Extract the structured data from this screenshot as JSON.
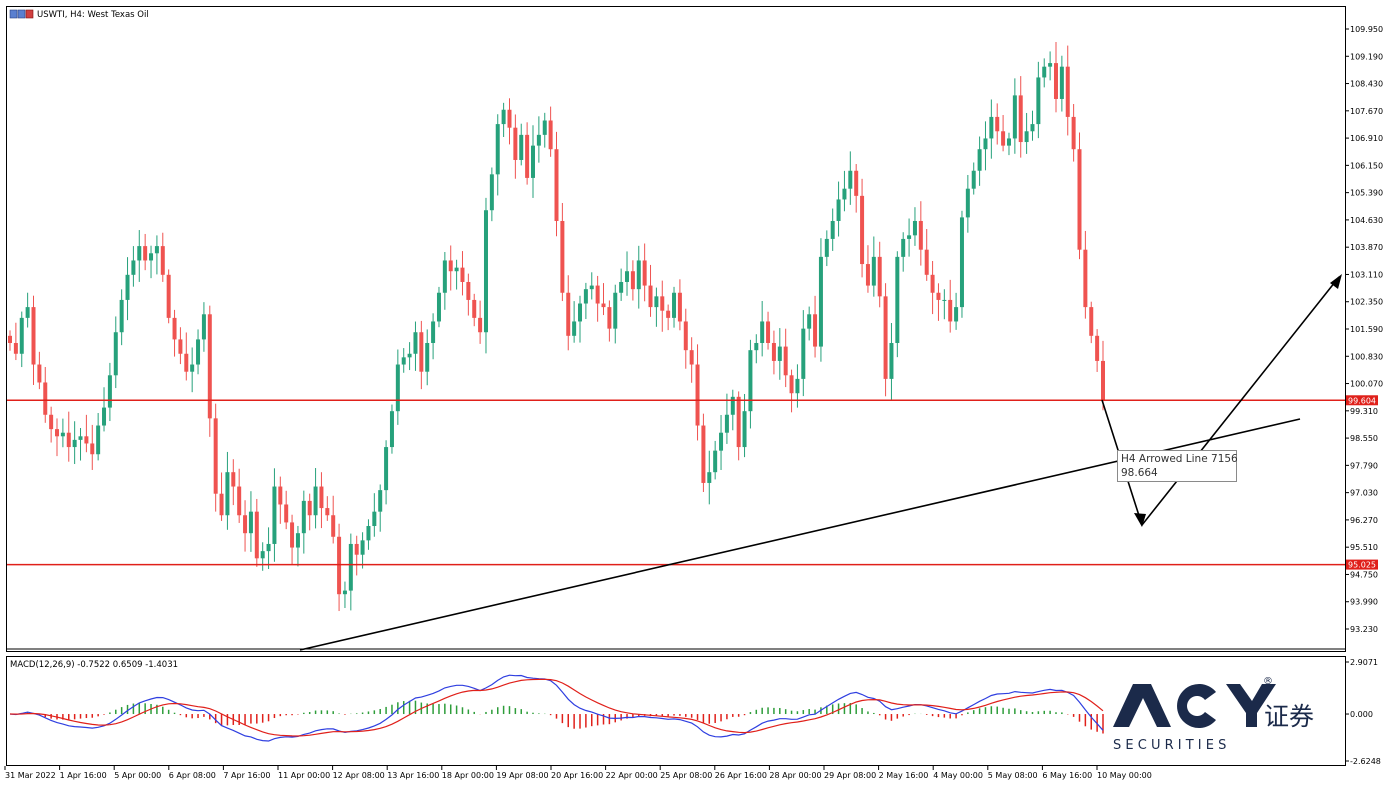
{
  "header": {
    "title": "USWTI, H4:  West Texas Oil"
  },
  "price_axis": {
    "labels": [
      "109.950",
      "109.190",
      "108.430",
      "107.670",
      "106.910",
      "106.150",
      "105.390",
      "104.630",
      "103.870",
      "103.110",
      "102.350",
      "101.590",
      "100.830",
      "100.070",
      "99.310",
      "98.550",
      "97.790",
      "97.030",
      "96.270",
      "95.510",
      "94.750",
      "93.990",
      "93.230"
    ],
    "min": 92.6,
    "max": 110.6
  },
  "time_axis": {
    "labels": [
      "31 Mar 2022",
      "1 Apr 16:00",
      "5 Apr 00:00",
      "6 Apr 08:00",
      "7 Apr 16:00",
      "11 Apr 00:00",
      "12 Apr 08:00",
      "13 Apr 16:00",
      "18 Apr 00:00",
      "19 Apr 08:00",
      "20 Apr 16:00",
      "22 Apr 00:00",
      "25 Apr 08:00",
      "26 Apr 16:00",
      "28 Apr 00:00",
      "29 Apr 08:00",
      "2 May 16:00",
      "4 May 00:00",
      "5 May 08:00",
      "6 May 16:00",
      "10 May 00:00"
    ]
  },
  "levels": [
    {
      "price": 99.604,
      "label": "99.604",
      "color": "#e0201a"
    },
    {
      "price": 95.025,
      "label": "95.025",
      "color": "#e0201a"
    }
  ],
  "tooltip": {
    "title": "H4 Arrowed Line 7156",
    "value": "98.664"
  },
  "macd": {
    "title": "MACD(12,26,9) -0.7522 0.6509 -1.4031",
    "scale_labels": [
      "2.9071",
      "0.000",
      "-2.6248"
    ],
    "max": 2.9071,
    "min": -2.6248
  },
  "logo": {
    "brand": "ACY",
    "chinese": "证券",
    "subtitle": "S E C U R I T I E S",
    "registered": "®"
  },
  "colors": {
    "bull": "#26a17b",
    "bear": "#ef5350",
    "level": "#e0201a",
    "macd_line": "#2f3fe0",
    "signal_line": "#e0201a",
    "hist_pos": "#2e9d3a",
    "hist_neg": "#e0201a",
    "logo_dark": "#1b2a4a"
  },
  "chart_data": {
    "type": "candlestick",
    "symbol": "USWTI",
    "timeframe": "H4",
    "closes": [
      101.2,
      100.9,
      101.9,
      102.2,
      100.6,
      100.1,
      99.2,
      98.8,
      98.6,
      98.7,
      98.3,
      98.5,
      98.6,
      98.4,
      98.1,
      98.9,
      99.4,
      100.3,
      101.5,
      102.4,
      103.1,
      103.5,
      103.9,
      103.5,
      103.7,
      103.9,
      103.1,
      101.9,
      101.3,
      100.9,
      100.4,
      100.6,
      101.3,
      102.0,
      99.1,
      97.0,
      96.4,
      97.6,
      97.2,
      96.4,
      95.9,
      96.5,
      95.2,
      95.4,
      95.6,
      97.2,
      96.7,
      96.2,
      95.5,
      95.9,
      96.8,
      96.4,
      97.2,
      96.6,
      96.4,
      95.8,
      94.2,
      94.3,
      95.6,
      95.3,
      95.7,
      96.1,
      96.5,
      97.1,
      98.3,
      99.3,
      100.6,
      100.8,
      100.9,
      101.5,
      100.4,
      101.2,
      101.8,
      102.6,
      103.5,
      103.2,
      103.3,
      102.9,
      102.4,
      101.9,
      101.5,
      104.9,
      105.9,
      107.3,
      107.7,
      107.2,
      106.3,
      107.0,
      105.8,
      106.7,
      107.0,
      107.4,
      106.6,
      104.6,
      102.6,
      101.4,
      101.8,
      102.3,
      102.7,
      102.8,
      102.3,
      102.2,
      101.6,
      102.6,
      102.9,
      103.2,
      102.7,
      103.5,
      102.8,
      102.2,
      102.5,
      102.1,
      101.9,
      102.6,
      101.8,
      101.0,
      100.6,
      98.9,
      97.3,
      97.6,
      98.2,
      98.7,
      99.2,
      99.7,
      98.3,
      99.3,
      101.0,
      101.2,
      101.8,
      101.2,
      100.7,
      101.1,
      100.3,
      99.8,
      100.2,
      101.6,
      102.0,
      101.1,
      103.6,
      104.1,
      104.6,
      105.2,
      105.5,
      106.0,
      105.3,
      103.4,
      102.8,
      103.6,
      102.5,
      100.2,
      101.2,
      103.6,
      104.1,
      104.2,
      104.6,
      103.8,
      103.1,
      102.6,
      102.4,
      102.4,
      101.8,
      102.2,
      104.7,
      105.5,
      106.0,
      106.6,
      106.9,
      107.5,
      107.1,
      106.7,
      106.9,
      108.1,
      106.8,
      107.1,
      107.3,
      108.6,
      108.9,
      109.0,
      108.0,
      108.9,
      107.5,
      106.6,
      103.8,
      102.2,
      101.4,
      100.7,
      99.6
    ],
    "support_resistance": [
      99.604,
      95.025
    ],
    "trendline": {
      "from": {
        "x": "11 Apr 00:00",
        "y": 92.7
      },
      "to": {
        "y": 98.9
      }
    },
    "arrowed_line": {
      "value": 98.664
    },
    "macd": {
      "fast": 12,
      "slow": 26,
      "signal": 9,
      "main": -0.7522,
      "signal_value": 0.6509,
      "histogram": -1.4031
    }
  }
}
